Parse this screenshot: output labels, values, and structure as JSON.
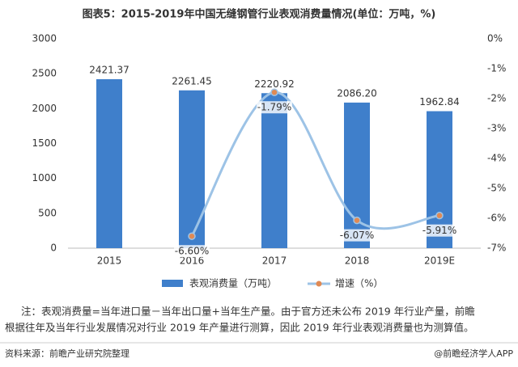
{
  "chart_data": {
    "type": "bar_line",
    "title": "图表5：2015-2019年中国无缝钢管行业表观消费量情况(单位：万吨，%)",
    "categories": [
      "2015",
      "2016",
      "2017",
      "2018",
      "2019E"
    ],
    "series": [
      {
        "name": "表观消费量（万吨）",
        "color": "#3f7fcb",
        "type": "bar",
        "values": [
          2421.37,
          2261.45,
          2220.92,
          2086.2,
          1962.84
        ],
        "value_labels": [
          "2421.37",
          "2261.45",
          "2220.92",
          "2086.20",
          "1962.84"
        ]
      },
      {
        "name": "增速（%）",
        "color": "#9dc3e6",
        "marker_color": "#e08a54",
        "type": "line",
        "axis": "y2",
        "values": [
          null,
          -6.6,
          -1.79,
          -6.07,
          -5.91
        ],
        "value_labels": [
          null,
          "-6.60%",
          "-1.79%",
          "-6.07%",
          "-5.91%"
        ]
      }
    ],
    "ylim": [
      0,
      3000
    ],
    "yticks": [
      0,
      500,
      1000,
      1500,
      2000,
      2500,
      3000
    ],
    "y2lim": [
      -7,
      0
    ],
    "y2ticks": [
      {
        "value": 0,
        "label": "0%"
      },
      {
        "value": -1,
        "label": "-1%"
      },
      {
        "value": -2,
        "label": "-2%"
      },
      {
        "value": -3,
        "label": "-3%"
      },
      {
        "value": -4,
        "label": "-4%"
      },
      {
        "value": -5,
        "label": "-5%"
      },
      {
        "value": -6,
        "label": "-6%"
      },
      {
        "value": -7,
        "label": "-7%"
      }
    ],
    "grid": false,
    "note": [
      "注：表观消费量=当年进口量－当年出口量+当年生产量。由于官方还未公布 2019 年行业产量，前瞻",
      "根据往年及当年行业发展情况对行业 2019 年产量进行测算，因此 2019 年行业表观消费量也为测算值。"
    ],
    "source": "资料来源：前瞻产业研究院整理",
    "credit": "@前瞻经济学人APP"
  }
}
